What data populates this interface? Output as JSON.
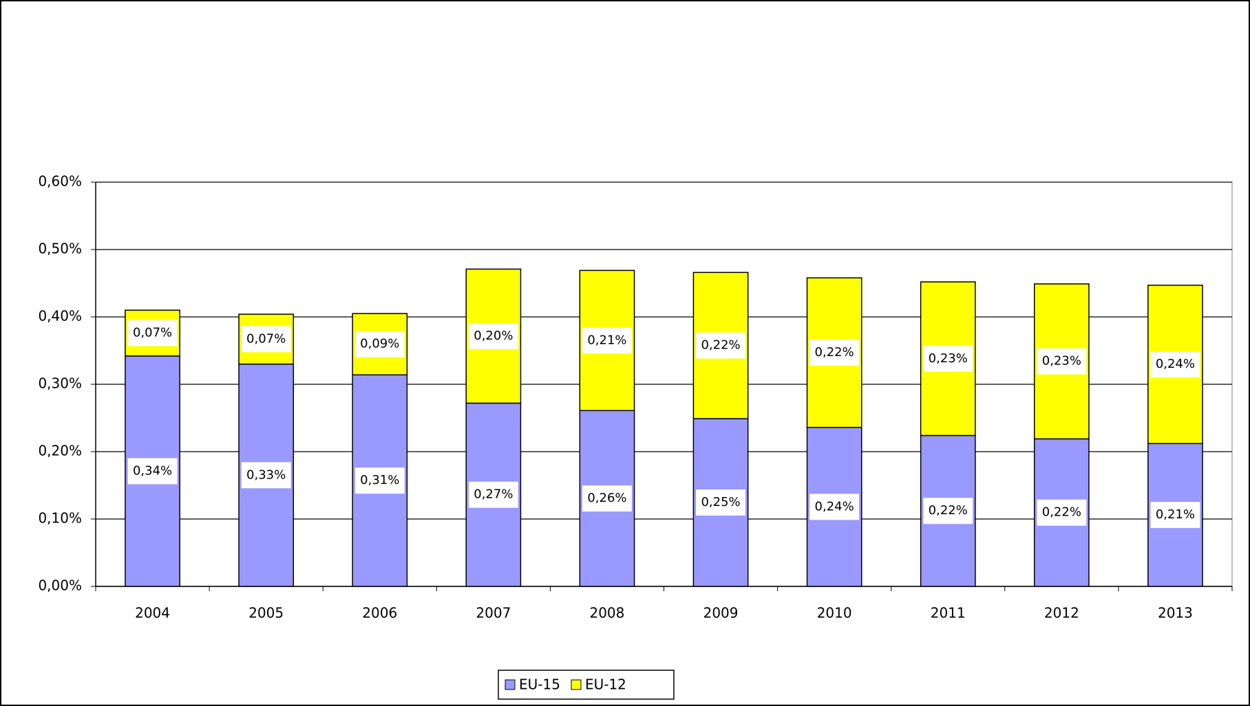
{
  "chart_data": {
    "type": "stacked_bar",
    "categories": [
      "2004",
      "2005",
      "2006",
      "2007",
      "2008",
      "2009",
      "2010",
      "2011",
      "2012",
      "2013"
    ],
    "series": [
      {
        "name": "EU-15",
        "color": "#9999ff",
        "values": [
          0.342,
          0.33,
          0.314,
          0.272,
          0.261,
          0.249,
          0.236,
          0.224,
          0.219,
          0.212
        ],
        "value_labels": [
          "0,34%",
          "0,33%",
          "0,31%",
          "0,27%",
          "0,26%",
          "0,25%",
          "0,24%",
          "0,22%",
          "0,22%",
          "0,21%"
        ]
      },
      {
        "name": "EU-12",
        "color": "#ffff00",
        "values": [
          0.068,
          0.074,
          0.091,
          0.199,
          0.208,
          0.217,
          0.222,
          0.228,
          0.23,
          0.235
        ],
        "value_labels": [
          "0,07%",
          "0,07%",
          "0,09%",
          "0,20%",
          "0,21%",
          "0,22%",
          "0,22%",
          "0,23%",
          "0,23%",
          "0,24%"
        ]
      }
    ],
    "ylim": [
      0,
      0.6
    ],
    "yticks": [
      {
        "value": 0,
        "label": "0,00%"
      },
      {
        "value": 0.1,
        "label": "0,10%"
      },
      {
        "value": 0.2,
        "label": "0,20%"
      },
      {
        "value": 0.3,
        "label": "0,30%"
      },
      {
        "value": 0.4,
        "label": "0,40%"
      },
      {
        "value": 0.5,
        "label": "0,50%"
      },
      {
        "value": 0.6,
        "label": "0,60%"
      }
    ],
    "grid": true,
    "legend": "bottom"
  }
}
